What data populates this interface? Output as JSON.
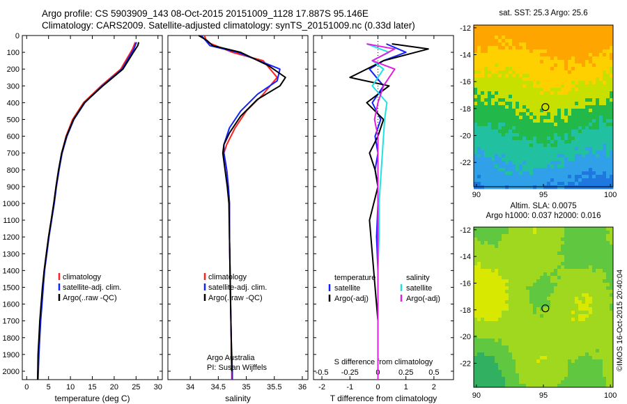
{
  "header": {
    "title_line1": "Argo profile: CS 5903909_143 08-Oct-2015 20151009_1128 17.887S 95.146E",
    "title_line2": "Climatology: CARS2009. Satellite-adjusted climatology: synTS_20151009.nc (0.33d later)"
  },
  "maps": {
    "sst_title": "sat. SST: 25.3 Argo: 25.6",
    "sla_title_line1": "Altim. SLA: 0.0075",
    "sla_title_line2": "Argo h1000: 0.037 h2000: 0.016",
    "xticks": [
      "90",
      "95",
      "100"
    ],
    "yticks": [
      "-12",
      "-14",
      "-16",
      "-18",
      "-20",
      "-22"
    ],
    "marker_lat": -17.887,
    "marker_lon": 95.146,
    "lon_range": [
      89.8,
      100.2
    ],
    "lat_range": [
      -11.8,
      -23.8
    ],
    "sst_colors": [
      "#ffa500",
      "#ffd000",
      "#c8e000",
      "#22b84a",
      "#20c0a0",
      "#30a0e8",
      "#1e78e0"
    ],
    "sla_colors": [
      "#d8e800",
      "#a0d820",
      "#60c840",
      "#30b060"
    ],
    "footer_stamp": "©IMOS 16-Oct-2015 20:40:04"
  },
  "chart_data": [
    {
      "type": "line",
      "panel": "temperature",
      "xlabel": "temperature (deg C)",
      "xlim": [
        -1,
        31
      ],
      "xticks": [
        "0",
        "5",
        "10",
        "15",
        "20",
        "25",
        "30"
      ],
      "ylim": [
        2050,
        0
      ],
      "yticks": [
        "0",
        "100",
        "200",
        "300",
        "400",
        "500",
        "600",
        "700",
        "800",
        "900",
        "1000",
        "1100",
        "1200",
        "1300",
        "1400",
        "1500",
        "1600",
        "1700",
        "1800",
        "1900",
        "2000"
      ],
      "legend": [
        "climatology",
        "satellite-adj. clim.",
        "Argo(..raw -QC)"
      ],
      "series": [
        {
          "name": "climatology",
          "color": "#ff2020",
          "x": [
            24.8,
            24.2,
            21.5,
            17.0,
            13.0,
            10.5,
            9.0,
            8.0,
            7.3,
            6.7,
            6.2,
            5.6,
            5.0,
            4.5,
            4.0,
            3.7,
            3.4,
            3.1,
            2.9,
            2.7,
            2.5
          ],
          "y": [
            40,
            80,
            200,
            300,
            400,
            500,
            600,
            700,
            800,
            900,
            1000,
            1100,
            1200,
            1300,
            1400,
            1500,
            1600,
            1700,
            1800,
            1900,
            2050
          ]
        },
        {
          "name": "satellite-adj. clim.",
          "color": "#1020ff",
          "x": [
            25.1,
            24.5,
            21.8,
            17.3,
            13.3,
            10.8,
            9.2,
            8.1,
            7.4,
            6.8,
            6.3,
            5.7,
            5.1,
            4.6,
            4.1,
            3.8,
            3.5,
            3.2,
            3.0,
            2.8,
            2.6
          ],
          "y": [
            40,
            80,
            200,
            300,
            400,
            500,
            600,
            700,
            800,
            900,
            1000,
            1100,
            1200,
            1300,
            1400,
            1500,
            1600,
            1700,
            1800,
            1900,
            2050
          ]
        },
        {
          "name": "Argo(..raw -QC)",
          "color": "#000000",
          "x": [
            25.6,
            25.4,
            24.4,
            22.0,
            17.4,
            13.2,
            10.7,
            9.1,
            8.0,
            7.3,
            6.7,
            6.2,
            5.6,
            5.0,
            4.5,
            4.0,
            3.6,
            3.3,
            3.0,
            2.8,
            2.6,
            2.5
          ],
          "y": [
            40,
            60,
            100,
            200,
            300,
            400,
            500,
            600,
            700,
            800,
            900,
            1000,
            1100,
            1200,
            1300,
            1400,
            1500,
            1600,
            1700,
            1800,
            1900,
            2050
          ]
        }
      ]
    },
    {
      "type": "line",
      "panel": "salinity",
      "xlabel": "salinity",
      "xlim": [
        33.6,
        36.1
      ],
      "xticks": [
        "34",
        "34.5",
        "35",
        "35.5",
        "36"
      ],
      "ylim": [
        2050,
        0
      ],
      "legend": [
        "climatology",
        "satellite-adj. clim.",
        "Argo(..raw -QC)"
      ],
      "annotation_line1": "Argo Australia",
      "annotation_line2": "PI: Susan Wijffels",
      "series": [
        {
          "name": "climatology",
          "color": "#ff2020",
          "x": [
            34.25,
            34.3,
            34.75,
            35.3,
            35.55,
            35.3,
            35.0,
            34.8,
            34.65,
            34.6,
            34.65,
            34.68,
            34.7,
            34.7,
            34.71,
            34.72,
            34.73,
            34.73,
            34.74,
            34.74
          ],
          "y": [
            0,
            40,
            100,
            150,
            250,
            350,
            450,
            550,
            650,
            700,
            800,
            900,
            1000,
            1200,
            1400,
            1600,
            1800,
            1900,
            2000,
            2050
          ]
        },
        {
          "name": "satellite-adj. clim.",
          "color": "#1020ff",
          "x": [
            34.2,
            34.35,
            34.85,
            35.6,
            35.55,
            35.2,
            34.9,
            34.7,
            34.6,
            34.6,
            34.65,
            34.68,
            34.7,
            34.7,
            34.71,
            34.72,
            34.73,
            34.74,
            34.75,
            34.75
          ],
          "y": [
            0,
            60,
            100,
            200,
            270,
            350,
            450,
            550,
            650,
            700,
            800,
            900,
            1000,
            1200,
            1400,
            1600,
            1800,
            1900,
            2000,
            2050
          ]
        },
        {
          "name": "Argo(..raw -QC)",
          "color": "#000000",
          "x": [
            34.15,
            34.3,
            34.4,
            34.9,
            35.4,
            35.7,
            35.6,
            35.2,
            34.9,
            34.7,
            34.6,
            34.58,
            34.62,
            34.66,
            34.69,
            34.7,
            34.71,
            34.72,
            34.73,
            34.74
          ],
          "y": [
            0,
            30,
            60,
            100,
            180,
            250,
            300,
            380,
            480,
            580,
            650,
            700,
            800,
            900,
            1000,
            1200,
            1400,
            1600,
            1800,
            2000
          ]
        }
      ]
    },
    {
      "type": "line",
      "panel": "differences",
      "xlabel": "T difference from climatology",
      "xlim": [
        -2.3,
        2.7
      ],
      "xticks": [
        "-2",
        "-1",
        "0",
        "1",
        "2"
      ],
      "top_label": "S difference from climatology",
      "top_xticks": [
        "-0.5",
        "-0.25",
        "0",
        "0.25",
        "0.5"
      ],
      "top_xlim": [
        -0.575,
        0.675
      ],
      "ylim": [
        2050,
        0
      ],
      "legend_temperature_header": "temperature",
      "legend_salinity_header": "salinity",
      "legend_temperature": [
        "satellite",
        "Argo(-adj)"
      ],
      "legend_salinity": [
        "satellite",
        "Argo(-adj)"
      ],
      "series": [
        {
          "name": "satellite",
          "group": "temperature",
          "color": "#1020ff",
          "x": [
            0.3,
            1.0,
            0.2,
            -0.3,
            0.2,
            -0.2,
            0.1,
            -0.1,
            0.0,
            -0.1,
            0.0,
            0.0,
            -0.05,
            0.0,
            0.0,
            0.0,
            0.0
          ],
          "y": [
            50,
            100,
            150,
            200,
            300,
            400,
            500,
            600,
            700,
            800,
            900,
            1000,
            1200,
            1400,
            1600,
            1800,
            2050
          ]
        },
        {
          "name": "Argo(-adj)",
          "group": "temperature",
          "color": "#000000",
          "x": [
            0.5,
            1.8,
            0.2,
            -1.0,
            0.4,
            -0.4,
            0.2,
            0.0,
            -0.3,
            -0.1,
            0.0,
            -0.3,
            -0.2,
            -0.1,
            0.0,
            0.0
          ],
          "y": [
            50,
            80,
            150,
            250,
            300,
            400,
            500,
            600,
            700,
            800,
            900,
            1100,
            1300,
            1500,
            1700,
            2050
          ]
        },
        {
          "name": "satellite",
          "group": "salinity",
          "color": "#20e0e0",
          "x": [
            -0.1,
            0.1,
            -0.05,
            0.05,
            -0.05,
            0.08,
            0.06,
            0.05,
            0.04,
            0.03,
            0.02,
            0.01,
            0.01,
            0.0,
            0.0,
            0.0
          ],
          "y": [
            50,
            100,
            150,
            200,
            300,
            400,
            500,
            600,
            700,
            800,
            900,
            1000,
            1200,
            1400,
            1700,
            2050
          ]
        },
        {
          "name": "Argo(-adj)",
          "group": "salinity",
          "color": "#e020e0",
          "x": [
            -0.1,
            0.15,
            -0.05,
            0.15,
            0.05,
            0.0,
            -0.03,
            0.0,
            0.0,
            0.0,
            0.0,
            0.0,
            0.0,
            0.0,
            0.0
          ],
          "y": [
            50,
            80,
            150,
            200,
            300,
            400,
            500,
            600,
            700,
            800,
            900,
            1100,
            1400,
            1700,
            2050
          ]
        }
      ]
    }
  ]
}
